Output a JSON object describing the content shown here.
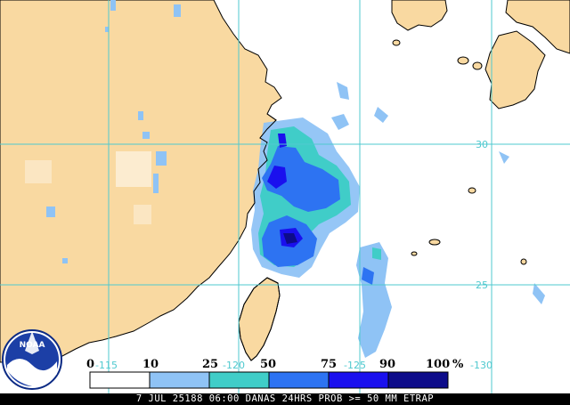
{
  "map": {
    "grid_labels": {
      "lon": [
        "-115",
        "-120",
        "-125",
        "-130"
      ],
      "lat": [
        "30",
        "25"
      ]
    },
    "colors": {
      "land": "#f9d9a1",
      "water": "#ffffff",
      "grid": "#4fc9cf",
      "coast": "#000000",
      "prob_0_10": "#ffffff",
      "prob_10_25": "#8fc3f5",
      "prob_25_50": "#40cdc8",
      "prob_50_75": "#2d73f2",
      "prob_75_90": "#1a10ee",
      "prob_90_100": "#0d0c8a"
    }
  },
  "legend": {
    "ticks": [
      "0",
      "10",
      "25",
      "50",
      "75",
      "90",
      "100",
      "%"
    ],
    "bins": [
      {
        "range": "0-10",
        "color": "#ffffff"
      },
      {
        "range": "10-25",
        "color": "#8fc3f5"
      },
      {
        "range": "25-50",
        "color": "#40cdc8"
      },
      {
        "range": "50-75",
        "color": "#2d73f2"
      },
      {
        "range": "75-90",
        "color": "#1a10ee"
      },
      {
        "range": "90-100",
        "color": "#0d0c8a"
      }
    ]
  },
  "logo": {
    "text": "NOAA"
  },
  "caption": "7 JUL 25188 06:00 DANAS 24HRS PROB >= 50 MM ETRAP"
}
